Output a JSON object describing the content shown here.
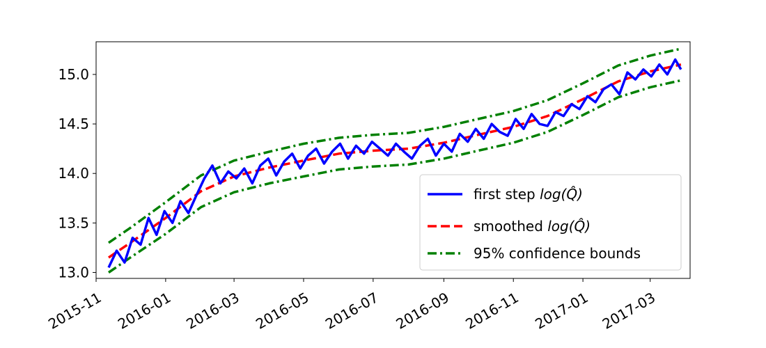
{
  "chart_data": {
    "type": "line",
    "title": "",
    "xlabel": "",
    "ylabel": "",
    "xlim": [
      "2015-11-01",
      "2017-04-05"
    ],
    "ylim": [
      12.94,
      15.33
    ],
    "x_ticks": [
      "2015-11-01",
      "2016-01-01",
      "2016-03-01",
      "2016-05-01",
      "2016-07-01",
      "2016-09-01",
      "2016-11-01",
      "2017-01-01",
      "2017-03-01"
    ],
    "x_tick_labels": [
      "2015-11",
      "2016-01",
      "2016-03",
      "2016-05",
      "2016-07",
      "2016-09",
      "2016-11",
      "2017-01",
      "2017-03"
    ],
    "y_ticks": [
      13.0,
      13.5,
      14.0,
      14.5,
      15.0
    ],
    "y_tick_labels": [
      "13.0",
      "13.5",
      "14.0",
      "14.5",
      "15.0"
    ],
    "grid": false,
    "legend_position": "lower-right",
    "series": [
      {
        "name": "first step log(Q̂)",
        "legend_label": "first step ",
        "legend_math": "log(Q̂)",
        "color": "#0000ff",
        "style": "solid",
        "x": [
          "2015-11-12",
          "2015-11-19",
          "2015-11-26",
          "2015-12-03",
          "2015-12-10",
          "2015-12-17",
          "2015-12-24",
          "2015-12-31",
          "2016-01-07",
          "2016-01-14",
          "2016-01-21",
          "2016-01-28",
          "2016-02-04",
          "2016-02-11",
          "2016-02-18",
          "2016-02-25",
          "2016-03-03",
          "2016-03-10",
          "2016-03-17",
          "2016-03-24",
          "2016-03-31",
          "2016-04-07",
          "2016-04-14",
          "2016-04-21",
          "2016-04-28",
          "2016-05-05",
          "2016-05-12",
          "2016-05-19",
          "2016-05-26",
          "2016-06-02",
          "2016-06-09",
          "2016-06-16",
          "2016-06-23",
          "2016-06-30",
          "2016-07-07",
          "2016-07-14",
          "2016-07-21",
          "2016-07-28",
          "2016-08-04",
          "2016-08-11",
          "2016-08-18",
          "2016-08-25",
          "2016-09-01",
          "2016-09-08",
          "2016-09-15",
          "2016-09-22",
          "2016-09-29",
          "2016-10-06",
          "2016-10-13",
          "2016-10-20",
          "2016-10-27",
          "2016-11-03",
          "2016-11-10",
          "2016-11-17",
          "2016-11-24",
          "2016-12-01",
          "2016-12-08",
          "2016-12-15",
          "2016-12-22",
          "2016-12-29",
          "2017-01-05",
          "2017-01-12",
          "2017-01-19",
          "2017-01-26",
          "2017-02-02",
          "2017-02-09",
          "2017-02-16",
          "2017-02-23",
          "2017-03-02",
          "2017-03-09",
          "2017-03-16",
          "2017-03-23",
          "2017-03-28"
        ],
        "values": [
          13.05,
          13.22,
          13.1,
          13.35,
          13.28,
          13.55,
          13.38,
          13.62,
          13.5,
          13.72,
          13.6,
          13.78,
          13.95,
          14.08,
          13.9,
          14.02,
          13.95,
          14.05,
          13.9,
          14.08,
          14.15,
          13.98,
          14.12,
          14.2,
          14.05,
          14.18,
          14.25,
          14.1,
          14.22,
          14.3,
          14.15,
          14.28,
          14.2,
          14.32,
          14.25,
          14.18,
          14.3,
          14.22,
          14.15,
          14.28,
          14.35,
          14.18,
          14.3,
          14.22,
          14.4,
          14.32,
          14.45,
          14.35,
          14.5,
          14.42,
          14.38,
          14.55,
          14.45,
          14.6,
          14.5,
          14.48,
          14.62,
          14.58,
          14.7,
          14.65,
          14.78,
          14.72,
          14.85,
          14.9,
          14.8,
          15.02,
          14.95,
          15.05,
          14.98,
          15.1,
          15.0,
          15.15,
          15.05
        ]
      },
      {
        "name": "smoothed log(Q̂)",
        "legend_label": "smoothed ",
        "legend_math": "log(Q̂)",
        "color": "#ff0000",
        "style": "dashed",
        "x": [
          "2015-11-12",
          "2015-12-01",
          "2016-01-01",
          "2016-02-01",
          "2016-03-01",
          "2016-04-01",
          "2016-05-01",
          "2016-06-01",
          "2016-07-01",
          "2016-08-01",
          "2016-09-01",
          "2016-10-01",
          "2016-11-01",
          "2016-12-01",
          "2017-01-01",
          "2017-02-01",
          "2017-03-01",
          "2017-03-28"
        ],
        "values": [
          13.15,
          13.3,
          13.55,
          13.82,
          13.97,
          14.06,
          14.13,
          14.2,
          14.23,
          14.25,
          14.31,
          14.39,
          14.47,
          14.58,
          14.75,
          14.93,
          15.03,
          15.1
        ]
      },
      {
        "name": "95% confidence bounds (upper)",
        "legend_label": "95% confidence bounds",
        "color": "#008000",
        "style": "dashdot",
        "x": [
          "2015-11-12",
          "2015-12-01",
          "2016-01-01",
          "2016-02-01",
          "2016-03-01",
          "2016-04-01",
          "2016-05-01",
          "2016-06-01",
          "2016-07-01",
          "2016-08-01",
          "2016-09-01",
          "2016-10-01",
          "2016-11-01",
          "2016-12-01",
          "2017-01-01",
          "2017-02-01",
          "2017-03-01",
          "2017-03-28"
        ],
        "values": [
          13.3,
          13.45,
          13.71,
          13.98,
          14.13,
          14.22,
          14.3,
          14.36,
          14.39,
          14.41,
          14.47,
          14.55,
          14.63,
          14.74,
          14.91,
          15.09,
          15.19,
          15.26
        ]
      },
      {
        "name": "95% confidence bounds (lower)",
        "color": "#008000",
        "style": "dashdot",
        "x": [
          "2015-11-12",
          "2015-12-01",
          "2016-01-01",
          "2016-02-01",
          "2016-03-01",
          "2016-04-01",
          "2016-05-01",
          "2016-06-01",
          "2016-07-01",
          "2016-08-01",
          "2016-09-01",
          "2016-10-01",
          "2016-11-01",
          "2016-12-01",
          "2017-01-01",
          "2017-02-01",
          "2017-03-01",
          "2017-03-28"
        ],
        "values": [
          13.0,
          13.15,
          13.39,
          13.66,
          13.81,
          13.9,
          13.97,
          14.04,
          14.07,
          14.09,
          14.15,
          14.23,
          14.31,
          14.42,
          14.59,
          14.77,
          14.87,
          14.94
        ]
      }
    ]
  }
}
